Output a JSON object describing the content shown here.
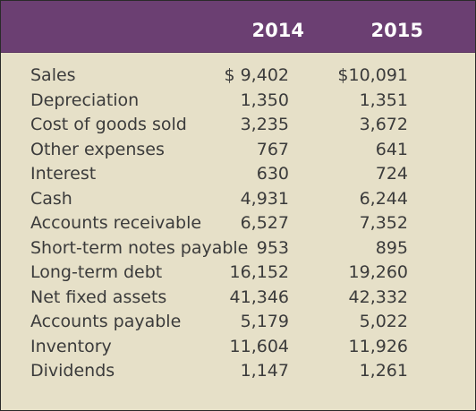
{
  "table": {
    "columns": [
      "2014",
      "2015"
    ],
    "rows": [
      {
        "label": "Sales",
        "y2014": "$ 9,402",
        "y2015": "$10,091"
      },
      {
        "label": "Depreciation",
        "y2014": "1,350",
        "y2015": "1,351"
      },
      {
        "label": "Cost of goods sold",
        "y2014": "3,235",
        "y2015": "3,672"
      },
      {
        "label": "Other expenses",
        "y2014": "767",
        "y2015": "641"
      },
      {
        "label": "Interest",
        "y2014": "630",
        "y2015": "724"
      },
      {
        "label": "Cash",
        "y2014": "4,931",
        "y2015": "6,244"
      },
      {
        "label": "Accounts receivable",
        "y2014": "6,527",
        "y2015": "7,352"
      },
      {
        "label": "Short-term notes payable",
        "y2014": "953",
        "y2015": "895"
      },
      {
        "label": "Long-term debt",
        "y2014": "16,152",
        "y2015": "19,260"
      },
      {
        "label": "Net fixed assets",
        "y2014": "41,346",
        "y2015": "42,332"
      },
      {
        "label": "Accounts payable",
        "y2014": "5,179",
        "y2015": "5,022"
      },
      {
        "label": "Inventory",
        "y2014": "11,604",
        "y2015": "11,926"
      },
      {
        "label": "Dividends",
        "y2014": "1,147",
        "y2015": "1,261"
      }
    ]
  },
  "colors": {
    "header_background": "#6b3f72",
    "body_background": "#e6e0c8",
    "text": "#3b3b3b",
    "header_text": "#ffffff"
  }
}
